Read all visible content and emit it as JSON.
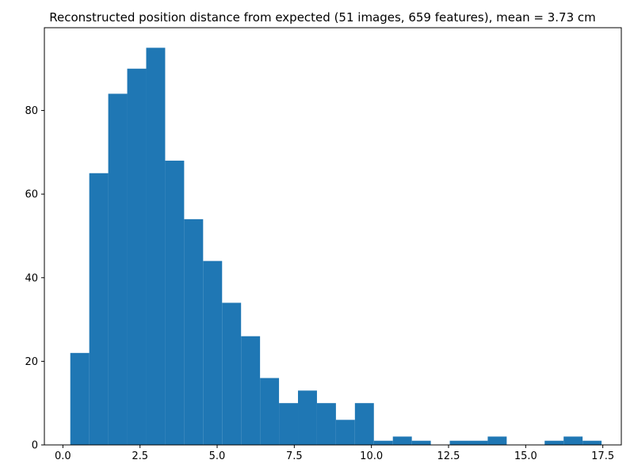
{
  "chart_data": {
    "type": "bar",
    "title": "Reconstructed position distance from expected (51 images, 659 features), mean = 3.73 cm",
    "xlabel": "",
    "ylabel": "",
    "bar_color": "#1f77b4",
    "grid": false,
    "xlim": [
      -0.6,
      18.1
    ],
    "ylim": [
      0,
      99.8
    ],
    "bin_edges": [
      0.24,
      0.855,
      1.47,
      2.085,
      2.7,
      3.315,
      3.93,
      4.545,
      5.16,
      5.775,
      6.39,
      7.005,
      7.62,
      8.235,
      8.85,
      9.465,
      10.08,
      10.695,
      11.31,
      11.925,
      12.54,
      13.155,
      13.77,
      14.385,
      15.0,
      15.615,
      16.23,
      16.845,
      17.46
    ],
    "values": [
      22,
      65,
      84,
      90,
      95,
      68,
      54,
      44,
      34,
      26,
      16,
      10,
      13,
      10,
      6,
      10,
      1,
      2,
      1,
      0,
      1,
      1,
      2,
      0,
      0,
      1,
      2,
      1
    ],
    "x_ticks": [
      {
        "value": 0.0,
        "label": "0.0"
      },
      {
        "value": 2.5,
        "label": "2.5"
      },
      {
        "value": 5.0,
        "label": "5.0"
      },
      {
        "value": 7.5,
        "label": "7.5"
      },
      {
        "value": 10.0,
        "label": "10.0"
      },
      {
        "value": 12.5,
        "label": "12.5"
      },
      {
        "value": 15.0,
        "label": "15.0"
      },
      {
        "value": 17.5,
        "label": "17.5"
      }
    ],
    "y_ticks": [
      {
        "value": 0,
        "label": "0"
      },
      {
        "value": 20,
        "label": "20"
      },
      {
        "value": 40,
        "label": "40"
      },
      {
        "value": 60,
        "label": "60"
      },
      {
        "value": 80,
        "label": "80"
      }
    ]
  }
}
